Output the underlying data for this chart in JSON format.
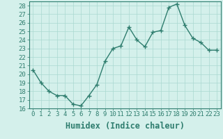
{
  "x": [
    0,
    1,
    2,
    3,
    4,
    5,
    6,
    7,
    8,
    9,
    10,
    11,
    12,
    13,
    14,
    15,
    16,
    17,
    18,
    19,
    20,
    21,
    22,
    23
  ],
  "y": [
    20.5,
    19.0,
    18.0,
    17.5,
    17.5,
    16.5,
    16.3,
    17.5,
    18.8,
    21.5,
    23.0,
    23.3,
    25.5,
    24.0,
    23.2,
    24.9,
    25.1,
    27.8,
    28.2,
    25.7,
    24.2,
    23.7,
    22.8,
    22.8
  ],
  "line_color": "#2e7d6e",
  "marker": "+",
  "markersize": 4,
  "linewidth": 1.0,
  "background_color": "#d4f0eb",
  "grid_color": "#aad8d0",
  "xlabel": "Humidex (Indice chaleur)",
  "xlim": [
    -0.5,
    23.5
  ],
  "ylim": [
    16,
    28.5
  ],
  "yticks": [
    16,
    17,
    18,
    19,
    20,
    21,
    22,
    23,
    24,
    25,
    26,
    27,
    28
  ],
  "xtick_labels": [
    "0",
    "1",
    "2",
    "3",
    "4",
    "5",
    "6",
    "7",
    "8",
    "9",
    "10",
    "11",
    "12",
    "13",
    "14",
    "15",
    "16",
    "17",
    "18",
    "19",
    "20",
    "21",
    "22",
    "23"
  ],
  "tick_fontsize": 6.5,
  "xlabel_fontsize": 8.5,
  "tick_color": "#2e7d6e",
  "axis_color": "#2e7d6e"
}
